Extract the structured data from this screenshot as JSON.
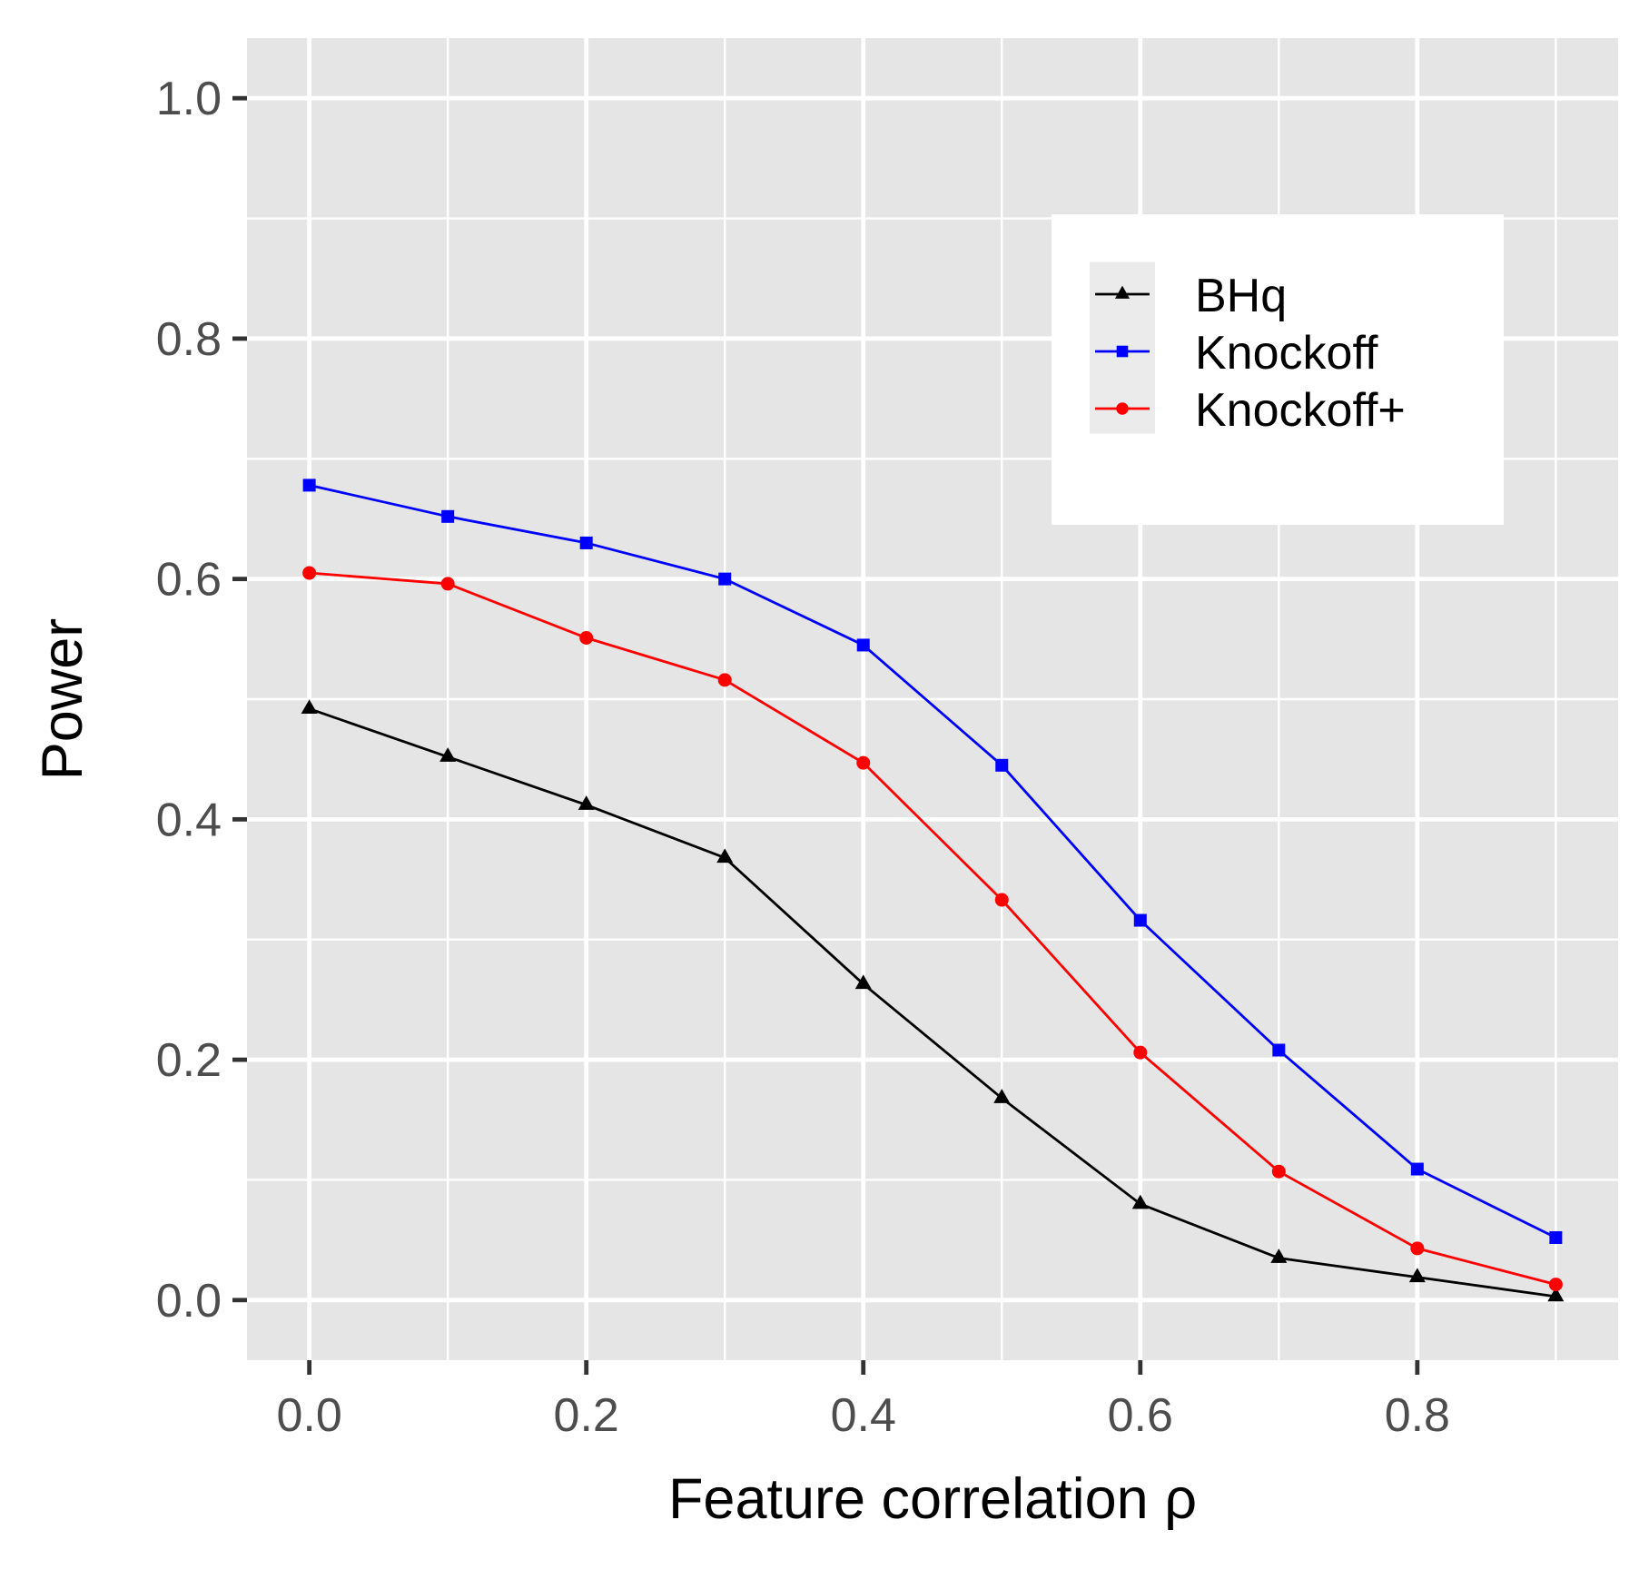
{
  "chart_data": {
    "type": "line",
    "title": "",
    "xlabel": "Feature correlation ρ",
    "ylabel": "Power",
    "x": [
      0.0,
      0.1,
      0.2,
      0.3,
      0.4,
      0.5,
      0.6,
      0.7,
      0.8,
      0.9
    ],
    "xlim": [
      -0.045,
      0.945
    ],
    "ylim": [
      -0.05,
      1.05
    ],
    "xticks": [
      0.0,
      0.2,
      0.4,
      0.6,
      0.8
    ],
    "xtick_labels": [
      "0.0",
      "0.2",
      "0.4",
      "0.6",
      "0.8"
    ],
    "yticks": [
      0.0,
      0.2,
      0.4,
      0.6,
      0.8,
      1.0
    ],
    "ytick_labels": [
      "0.0",
      "0.2",
      "0.4",
      "0.6",
      "0.8",
      "1.0"
    ],
    "grid": true,
    "legend_position": "top-right",
    "panel_background": "#e5e5e5",
    "grid_color": "#ffffff",
    "series": [
      {
        "name": "BHq",
        "color": "#000000",
        "marker": "triangle",
        "values": [
          0.492,
          0.452,
          0.412,
          0.368,
          0.263,
          0.168,
          0.08,
          0.035,
          0.019,
          0.003
        ]
      },
      {
        "name": "Knockoff",
        "color": "#0000ff",
        "marker": "square",
        "values": [
          0.678,
          0.652,
          0.63,
          0.6,
          0.545,
          0.445,
          0.316,
          0.208,
          0.109,
          0.052
        ]
      },
      {
        "name": "Knockoff+",
        "color": "#ff0000",
        "marker": "circle",
        "values": [
          0.605,
          0.596,
          0.551,
          0.516,
          0.447,
          0.333,
          0.206,
          0.107,
          0.043,
          0.013
        ]
      }
    ]
  }
}
